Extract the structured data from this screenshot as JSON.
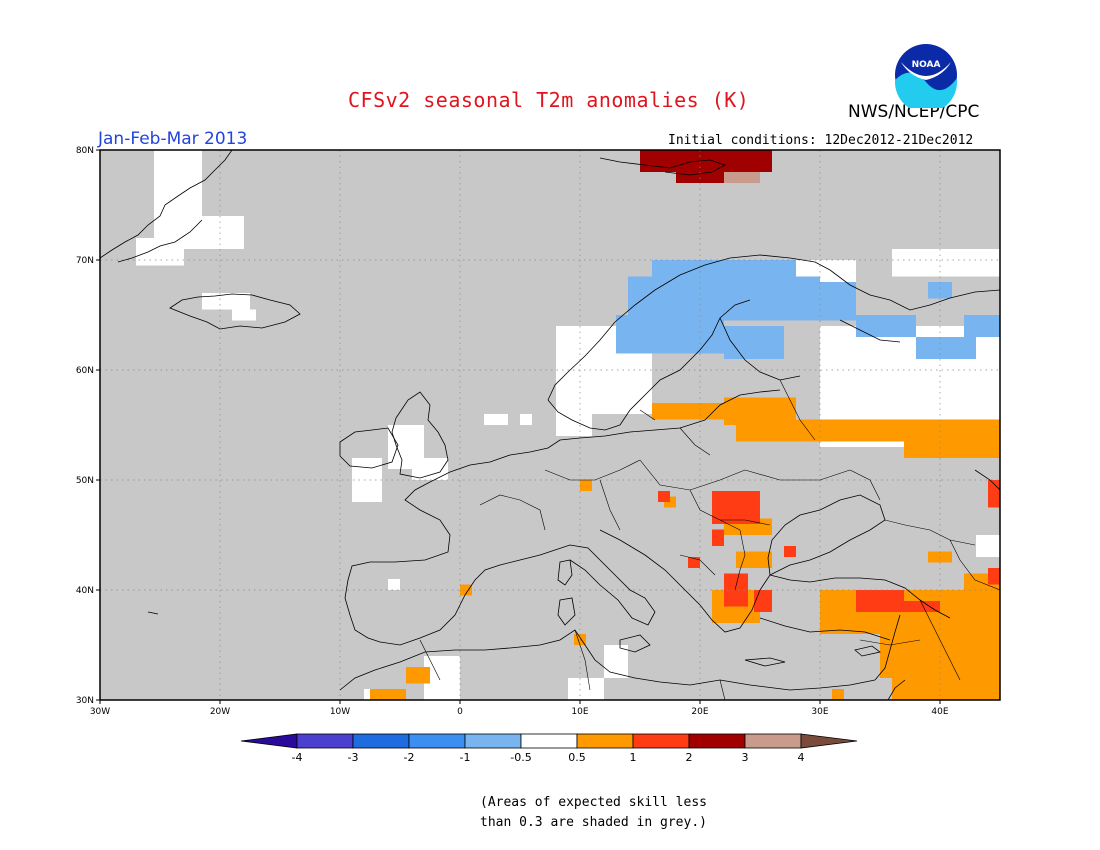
{
  "header": {
    "title": "CFSv2 seasonal T2m anomalies (K)",
    "org": "NWS/NCEP/CPC",
    "season": "Jan-Feb-Mar 2013",
    "initial_conditions": "Initial conditions: 12Dec2012-21Dec2012",
    "logo_text": "NOAA"
  },
  "map": {
    "lon_range": [
      -30,
      45
    ],
    "lat_range": [
      30,
      80
    ],
    "lat_ticks": [
      "30N",
      "40N",
      "50N",
      "60N",
      "70N",
      "80N"
    ],
    "lon_ticks": [
      "30W",
      "20W",
      "10W",
      "0",
      "10E",
      "20E",
      "30E",
      "40E"
    ],
    "colors": {
      "grey": "#c8c8c8",
      "neutral": "#ffffff",
      "cool1": "#78b4f0",
      "warm1": "#ff9900",
      "warm2": "#ff3c14",
      "warm3": "#a00000",
      "warm4": "#c89b8c"
    }
  },
  "colorbar": {
    "labels": [
      "-4",
      "-3",
      "-2",
      "-1",
      "-0.5",
      "0.5",
      "1",
      "2",
      "3",
      "4"
    ],
    "colors": [
      "#2a0a9a",
      "#4b3fd0",
      "#1f6be0",
      "#3c8ef0",
      "#78b4f0",
      "#ffffff",
      "#ff9900",
      "#ff3c14",
      "#a00000",
      "#c89b8c",
      "#7a4a3a"
    ]
  },
  "note": "(Areas of expected skill less\nthan 0.3 are shaded in grey.)"
}
